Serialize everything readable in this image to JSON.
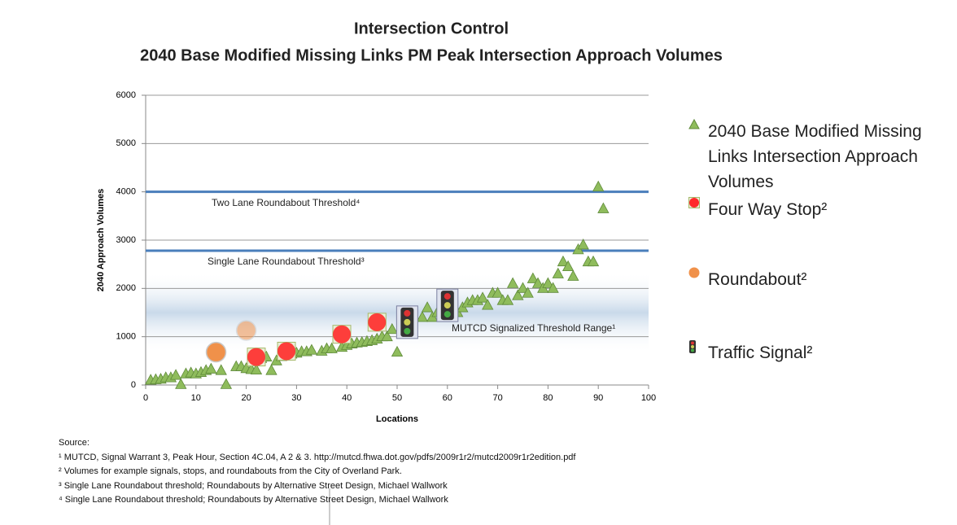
{
  "chart_data": {
    "type": "scatter",
    "title": "Intersection Control",
    "subtitle": "2040 Base Modified Missing Links PM Peak Intersection Approach Volumes",
    "x_label": "Locations",
    "y_label": "2040 Approach Volumes",
    "xlim": [
      0,
      100
    ],
    "xticks": [
      0,
      10,
      20,
      30,
      40,
      50,
      60,
      70,
      80,
      90,
      100
    ],
    "ylim": [
      0,
      6000
    ],
    "yticks": [
      0,
      1000,
      2000,
      3000,
      4000,
      5000,
      6000
    ],
    "grid": true,
    "band": {
      "label": "MUTCD Signalized Threshold Range¹",
      "range": [
        1000,
        2000
      ],
      "color": "#c9d9ea"
    },
    "thresholds": [
      {
        "label": "Two Lane Roundabout Threshold⁴",
        "value": 4000,
        "color": "#4a7ebb"
      },
      {
        "label": "Single Lane Roundabout Threshold³",
        "value": 2780,
        "color": "#4a7ebb"
      }
    ],
    "series": [
      {
        "name": "2040 Base Modified Missing Links Intersection Approach Volumes",
        "color": "#8fbc5c",
        "marker": "triangle",
        "x": [
          1,
          2,
          3,
          4,
          5,
          6,
          7,
          8,
          9,
          10,
          11,
          12,
          13,
          15,
          16,
          18,
          19,
          20,
          21,
          22,
          23,
          24,
          25,
          26,
          27,
          28,
          29,
          30,
          31,
          32,
          33,
          35,
          36,
          37,
          39,
          40,
          41,
          42,
          43,
          44,
          45,
          46,
          47,
          48,
          49,
          50,
          52,
          53,
          55,
          56,
          57,
          58,
          60,
          61,
          62,
          63,
          64,
          65,
          66,
          67,
          68,
          69,
          70,
          71,
          72,
          73,
          74,
          75,
          76,
          77,
          78,
          79,
          80,
          81,
          82,
          83,
          84,
          85,
          86,
          87,
          88,
          89,
          90,
          91
        ],
        "values": [
          100,
          110,
          120,
          150,
          150,
          200,
          10,
          230,
          250,
          230,
          260,
          300,
          330,
          300,
          10,
          380,
          380,
          340,
          320,
          310,
          550,
          580,
          300,
          500,
          590,
          620,
          640,
          660,
          690,
          690,
          720,
          700,
          750,
          750,
          780,
          820,
          850,
          870,
          880,
          900,
          920,
          950,
          1000,
          1000,
          1150,
          680,
          1200,
          1400,
          1400,
          1600,
          1400,
          1500,
          1650,
          1600,
          1500,
          1600,
          1700,
          1750,
          1750,
          1800,
          1650,
          1900,
          1900,
          1750,
          1750,
          2100,
          1850,
          2000,
          1900,
          2200,
          2100,
          2000,
          2100,
          2000,
          2300,
          2550,
          2450,
          2250,
          2800,
          2900,
          2550,
          2550,
          4100,
          3650
        ]
      },
      {
        "name": "Four Way Stop²",
        "color": "#ff2a2a",
        "marker": "stop",
        "x": [
          22,
          28,
          39,
          46
        ],
        "values": [
          580,
          700,
          1050,
          1300
        ]
      },
      {
        "name": "Roundabout²",
        "color": "#f0914a",
        "marker": "circle",
        "x": [
          14,
          20
        ],
        "values": [
          680,
          1130
        ]
      },
      {
        "name": "Traffic Signal²",
        "color": "#333333",
        "marker": "signal",
        "x": [
          52,
          60
        ],
        "values": [
          1300,
          1650
        ]
      }
    ],
    "source_title": "Source:",
    "notes": [
      "¹ MUTCD, Signal Warrant 3, Peak Hour, Section 4C.04, A 2 & 3. http://mutcd.fhwa.dot.gov/pdfs/2009r1r2/mutcd2009r1r2edition.pdf",
      "² Volumes for example signals, stops, and roundabouts from the City of Overland Park.",
      "³ Single Lane Roundabout threshold; Roundabouts by Alternative Street Design, Michael Wallwork",
      "⁴ Single Lane Roundabout threshold; Roundabouts by Alternative Street Design, Michael Wallwork"
    ]
  }
}
